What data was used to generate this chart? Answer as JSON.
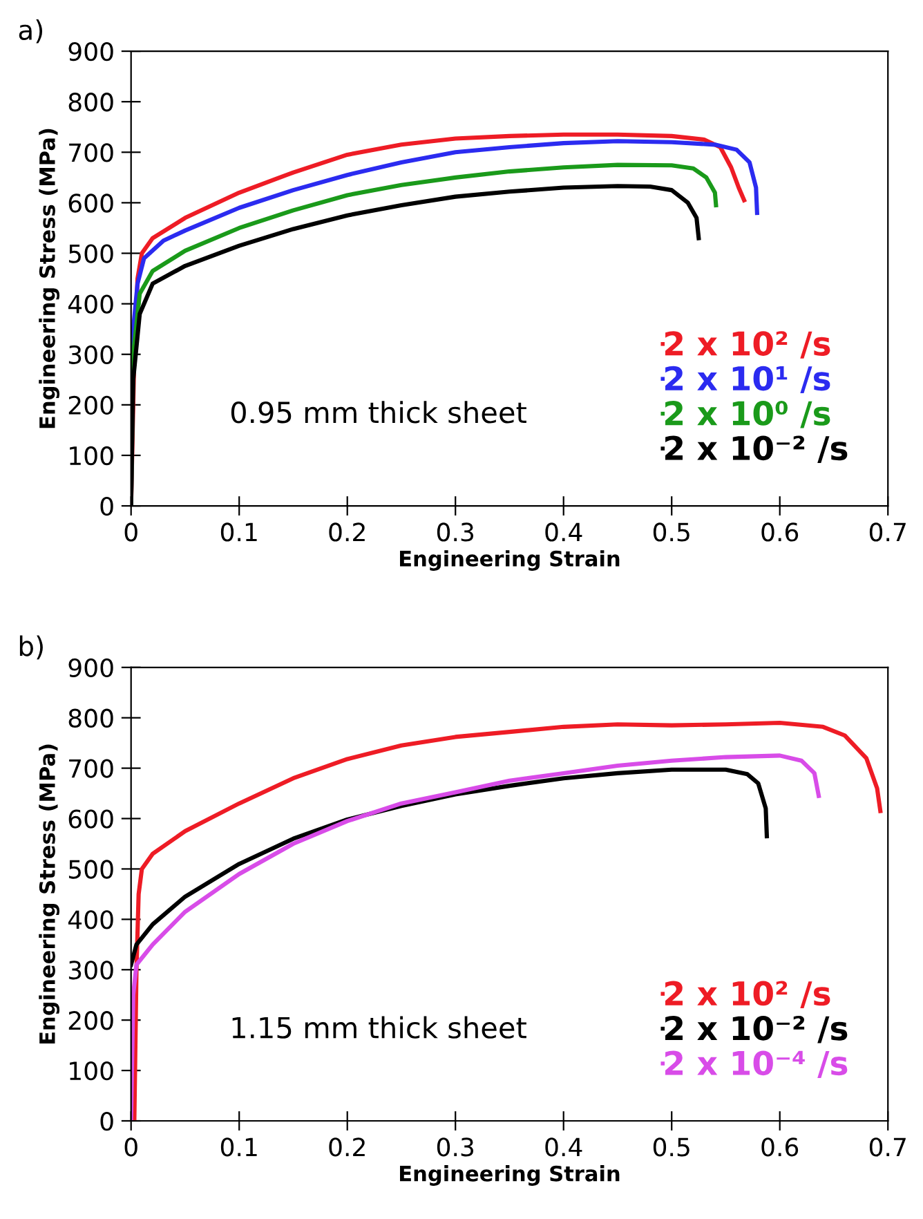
{
  "chart_data": [
    {
      "type": "line",
      "title": "a)",
      "xlabel": "Engineering Strain",
      "ylabel": "Engineering Stress (MPa)",
      "xlim": [
        0,
        0.7
      ],
      "ylim": [
        0,
        900
      ],
      "xticks": [
        0,
        0.1,
        0.2,
        0.3,
        0.4,
        0.5,
        0.6,
        0.7
      ],
      "yticks": [
        0,
        100,
        200,
        300,
        400,
        500,
        600,
        700,
        800,
        900
      ],
      "grid": false,
      "legend": "bottom right",
      "marker": "none",
      "line_style": "solid",
      "annotations": [
        "0.95 mm thick sheet"
      ],
      "series": [
        {
          "name": "2 x 10² /s",
          "color": "#ee1c25",
          "x": [
            0,
            0.003,
            0.006,
            0.01,
            0.02,
            0.05,
            0.1,
            0.15,
            0.2,
            0.25,
            0.3,
            0.35,
            0.4,
            0.45,
            0.5,
            0.53,
            0.545,
            0.555,
            0.562,
            0.567
          ],
          "values": [
            0,
            300,
            450,
            500,
            530,
            570,
            620,
            660,
            695,
            715,
            727,
            732,
            735,
            735,
            732,
            725,
            710,
            670,
            630,
            605
          ]
        },
        {
          "name": "2 x 10¹ /s",
          "color": "#2b2bf0",
          "x": [
            0,
            0.002,
            0.006,
            0.012,
            0.03,
            0.05,
            0.1,
            0.15,
            0.2,
            0.25,
            0.3,
            0.35,
            0.4,
            0.45,
            0.5,
            0.54,
            0.56,
            0.572,
            0.578,
            0.579
          ],
          "values": [
            0,
            350,
            440,
            490,
            525,
            545,
            590,
            625,
            655,
            680,
            700,
            710,
            718,
            722,
            720,
            715,
            705,
            680,
            630,
            580
          ]
        },
        {
          "name": "2 x 10⁰ /s",
          "color": "#1a9a1a",
          "x": [
            0,
            0.002,
            0.008,
            0.02,
            0.05,
            0.1,
            0.15,
            0.2,
            0.25,
            0.3,
            0.35,
            0.4,
            0.45,
            0.5,
            0.52,
            0.532,
            0.54,
            0.541
          ],
          "values": [
            0,
            300,
            420,
            465,
            505,
            550,
            585,
            615,
            635,
            650,
            662,
            670,
            675,
            674,
            668,
            650,
            620,
            595
          ]
        },
        {
          "name": "2 x 10⁻² /s",
          "color": "#000000",
          "x": [
            0,
            0.002,
            0.008,
            0.02,
            0.05,
            0.1,
            0.15,
            0.2,
            0.25,
            0.3,
            0.35,
            0.4,
            0.45,
            0.48,
            0.5,
            0.515,
            0.523,
            0.525
          ],
          "values": [
            0,
            250,
            380,
            440,
            475,
            515,
            548,
            575,
            595,
            612,
            622,
            630,
            633,
            632,
            625,
            600,
            570,
            530
          ]
        }
      ]
    },
    {
      "type": "line",
      "title": "b)",
      "xlabel": "Engineering Strain",
      "ylabel": "Engineering Stress (MPa)",
      "xlim": [
        0,
        0.7
      ],
      "ylim": [
        0,
        900
      ],
      "xticks": [
        0,
        0.1,
        0.2,
        0.3,
        0.4,
        0.5,
        0.6,
        0.7
      ],
      "yticks": [
        0,
        100,
        200,
        300,
        400,
        500,
        600,
        700,
        800,
        900
      ],
      "grid": false,
      "legend": "bottom right",
      "marker": "none",
      "line_style": "solid",
      "annotations": [
        "1.15 mm thick sheet"
      ],
      "series": [
        {
          "name": "2 x 10² /s",
          "color": "#ee1c25",
          "x": [
            0.003,
            0.005,
            0.007,
            0.01,
            0.02,
            0.05,
            0.1,
            0.15,
            0.2,
            0.25,
            0.3,
            0.35,
            0.4,
            0.45,
            0.5,
            0.55,
            0.6,
            0.64,
            0.66,
            0.68,
            0.69,
            0.693
          ],
          "values": [
            0,
            300,
            450,
            500,
            530,
            575,
            630,
            680,
            718,
            745,
            762,
            772,
            782,
            787,
            785,
            787,
            790,
            782,
            765,
            720,
            660,
            615
          ]
        },
        {
          "name": "2 x 10⁻² /s",
          "color": "#000000",
          "x": [
            0,
            0.005,
            0.02,
            0.05,
            0.1,
            0.15,
            0.2,
            0.25,
            0.3,
            0.35,
            0.4,
            0.45,
            0.5,
            0.55,
            0.57,
            0.58,
            0.587,
            0.588
          ],
          "values": [
            310,
            350,
            390,
            445,
            510,
            560,
            598,
            625,
            648,
            665,
            680,
            690,
            697,
            697,
            688,
            670,
            620,
            565
          ]
        },
        {
          "name": "2 x 10⁻⁴ /s",
          "color": "#d84ce8",
          "x": [
            0,
            0.002,
            0.005,
            0.02,
            0.05,
            0.1,
            0.15,
            0.2,
            0.25,
            0.3,
            0.35,
            0.4,
            0.45,
            0.5,
            0.55,
            0.6,
            0.62,
            0.632,
            0.636
          ],
          "values": [
            0,
            250,
            310,
            350,
            415,
            490,
            550,
            595,
            630,
            652,
            675,
            690,
            705,
            715,
            722,
            725,
            715,
            690,
            645
          ]
        }
      ]
    }
  ]
}
